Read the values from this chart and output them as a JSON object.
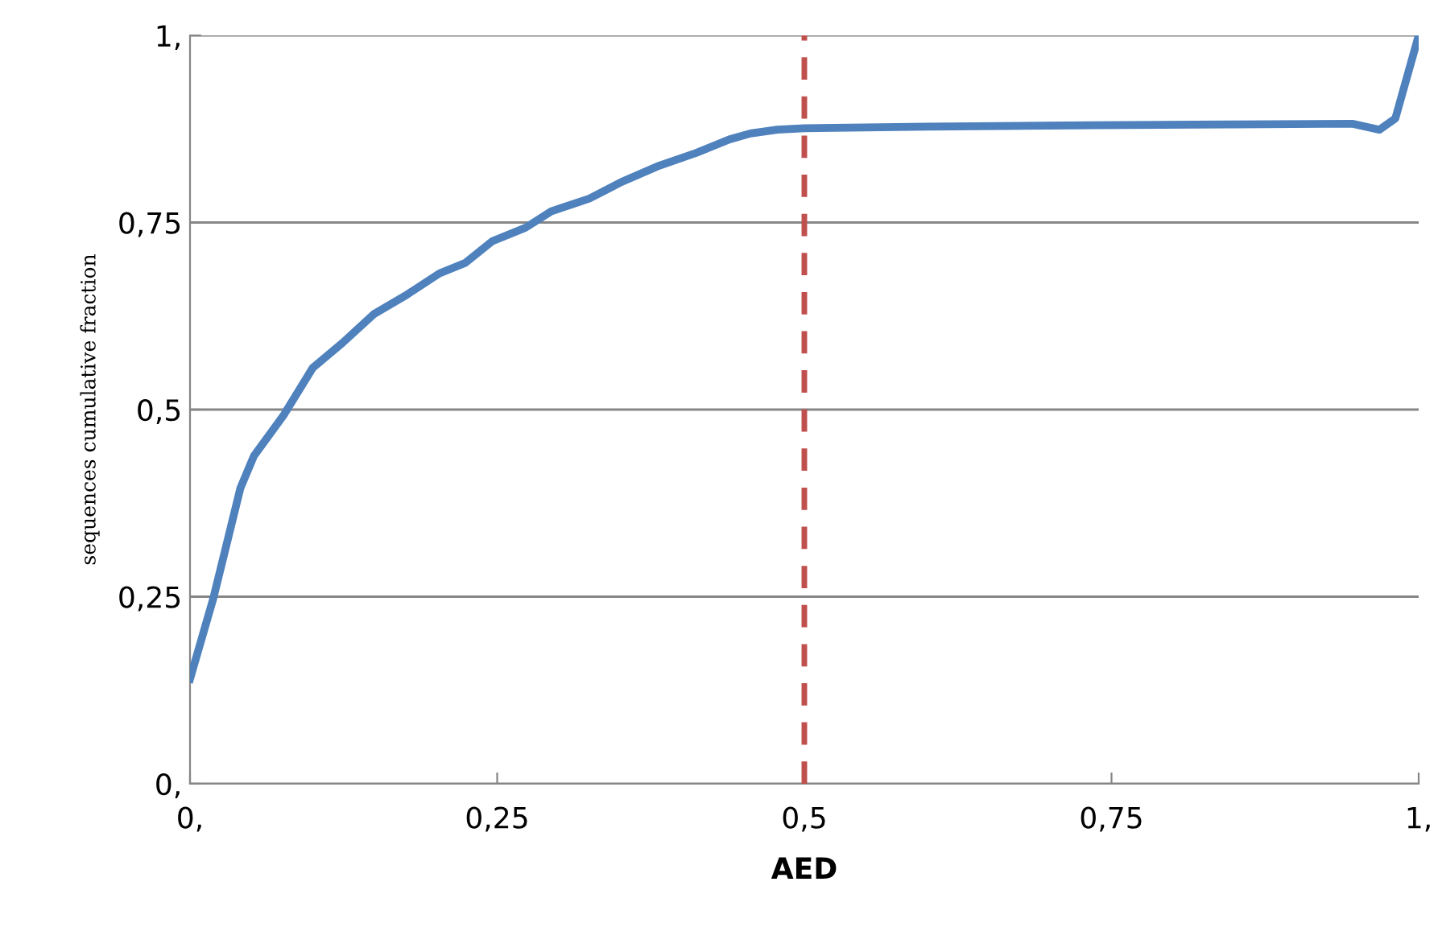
{
  "chart_data": {
    "type": "line",
    "xlabel": "AED",
    "ylabel": "sequences cumulative fraction",
    "series": [
      {
        "color": "#4f81bd",
        "x": [
          0,
          0.019,
          0.041,
          0.052,
          0.076,
          0.1,
          0.124,
          0.15,
          0.176,
          0.203,
          0.224,
          0.246,
          0.273,
          0.294,
          0.325,
          0.351,
          0.382,
          0.412,
          0.439,
          0.456,
          0.478,
          0.5,
          0.6,
          0.736,
          0.85,
          0.946,
          0.968,
          0.981,
          1.0
        ],
        "values": [
          0.14,
          0.248,
          0.395,
          0.438,
          0.492,
          0.556,
          0.589,
          0.628,
          0.653,
          0.682,
          0.696,
          0.725,
          0.743,
          0.765,
          0.782,
          0.804,
          0.826,
          0.843,
          0.861,
          0.869,
          0.874,
          0.876,
          0.878,
          0.88,
          0.881,
          0.882,
          0.874,
          0.889,
          1.0
        ]
      }
    ],
    "xlim": [
      0,
      1
    ],
    "ylim": [
      0,
      1
    ],
    "xticks": [
      {
        "value": 0,
        "label": "0,"
      },
      {
        "value": 0.25,
        "label": "0,25"
      },
      {
        "value": 0.5,
        "label": "0,5"
      },
      {
        "value": 0.75,
        "label": "0,75"
      },
      {
        "value": 1,
        "label": "1,"
      }
    ],
    "yticks": [
      {
        "value": 0,
        "label": "0,"
      },
      {
        "value": 0.25,
        "label": "0,25"
      },
      {
        "value": 0.5,
        "label": "0,5"
      },
      {
        "value": 0.75,
        "label": "0,75"
      },
      {
        "value": 1,
        "label": "1,"
      }
    ],
    "grid": "y",
    "line_style": "solid",
    "marker": "none",
    "ref_lines": [
      {
        "axis": "x",
        "value": 0.5,
        "color": "#c0504d",
        "line_style": "dashed"
      }
    ]
  }
}
